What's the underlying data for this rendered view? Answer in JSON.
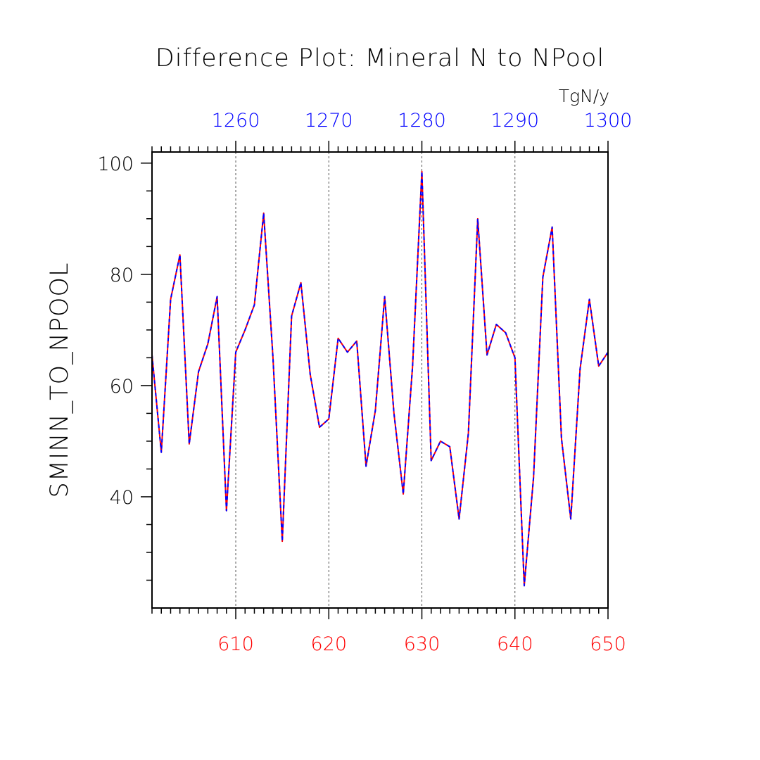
{
  "chart_data": {
    "type": "line",
    "title": "Difference Plot: Mineral N to NPool",
    "units": "TgN/y",
    "ylabel": "SMINN_TO_NPOOL",
    "xlabel": "",
    "xlim": [
      601,
      650
    ],
    "ylim": [
      20,
      102
    ],
    "y_ticks": [
      40,
      60,
      80,
      100
    ],
    "bottom_axis": {
      "ticks": [
        610,
        620,
        630,
        640,
        650
      ],
      "color": "#ff0000"
    },
    "top_axis": {
      "ticks": [
        1260,
        1270,
        1280,
        1290,
        1300
      ],
      "color": "#0000ff",
      "offset": 650
    },
    "grid": "vertical dashed at major x ticks",
    "x": [
      601,
      602,
      603,
      604,
      605,
      606,
      607,
      608,
      609,
      610,
      611,
      612,
      613,
      614,
      615,
      616,
      617,
      618,
      619,
      620,
      621,
      622,
      623,
      624,
      625,
      626,
      627,
      628,
      629,
      630,
      631,
      632,
      633,
      634,
      635,
      636,
      637,
      638,
      639,
      640,
      641,
      642,
      643,
      644,
      645,
      646,
      647,
      648,
      649,
      650
    ],
    "series": [
      {
        "color": "#ff0000",
        "style": "solid",
        "values": [
          65.5,
          48,
          75.5,
          83.5,
          49.5,
          62.5,
          67.5,
          76,
          37.5,
          66,
          70,
          74.5,
          91,
          65,
          32,
          72.5,
          78.5,
          62,
          52.5,
          54,
          68.5,
          66,
          68,
          45.5,
          55.5,
          76,
          55,
          40.5,
          63.5,
          98.5,
          46.5,
          50,
          49,
          36,
          51.5,
          90,
          65.5,
          71,
          69.5,
          65,
          24,
          43.5,
          79.5,
          88.5,
          50.5,
          36,
          63,
          75.5,
          63.5,
          66
        ]
      },
      {
        "color": "#0000ff",
        "style": "dashed",
        "values": [
          65.5,
          48,
          75.5,
          83.5,
          49.5,
          62.5,
          67.5,
          76,
          37.5,
          66,
          70,
          74.5,
          91,
          65,
          32,
          72.5,
          78.5,
          62,
          52.5,
          54,
          68.5,
          66,
          68,
          45.5,
          55.5,
          76,
          55,
          40.5,
          63.5,
          98.5,
          46.5,
          50,
          49,
          36,
          51.5,
          90,
          65.5,
          71,
          69.5,
          65,
          24,
          43.5,
          79.5,
          88.5,
          50.5,
          36,
          63,
          75.5,
          63.5,
          66
        ]
      }
    ]
  }
}
